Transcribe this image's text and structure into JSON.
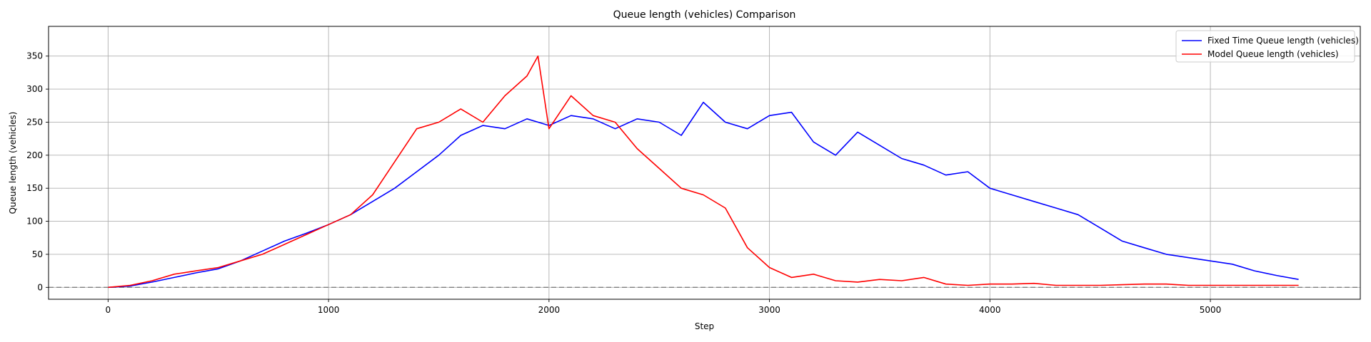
{
  "chart_data": {
    "type": "line",
    "title": "Queue length (vehicles) Comparison",
    "xlabel": "Step",
    "ylabel": "Queue length (vehicles)",
    "xlim": [
      -270,
      5680
    ],
    "ylim": [
      -18,
      395
    ],
    "xticks": [
      0,
      1000,
      2000,
      3000,
      4000,
      5000
    ],
    "yticks": [
      0,
      50,
      100,
      150,
      200,
      250,
      300,
      350
    ],
    "grid": true,
    "legend_position": "top-right",
    "reference_line": {
      "y": 0,
      "style": "dashed",
      "color": "#808080"
    },
    "series": [
      {
        "name": "Fixed Time Queue length (vehicles)",
        "color": "#0000ff",
        "x": [
          0,
          100,
          200,
          300,
          400,
          500,
          600,
          700,
          800,
          900,
          1000,
          1100,
          1200,
          1300,
          1400,
          1500,
          1600,
          1700,
          1800,
          1900,
          2000,
          2100,
          2200,
          2300,
          2400,
          2500,
          2600,
          2700,
          2800,
          2900,
          3000,
          3100,
          3200,
          3300,
          3400,
          3500,
          3600,
          3700,
          3800,
          3900,
          4000,
          4100,
          4200,
          4300,
          4400,
          4500,
          4600,
          4700,
          4800,
          4900,
          5000,
          5100,
          5200,
          5300,
          5400
        ],
        "y": [
          0,
          2,
          8,
          15,
          22,
          28,
          40,
          55,
          70,
          82,
          95,
          110,
          130,
          150,
          175,
          200,
          230,
          245,
          240,
          255,
          245,
          260,
          255,
          240,
          255,
          250,
          230,
          280,
          250,
          240,
          260,
          265,
          220,
          200,
          235,
          215,
          195,
          185,
          170,
          175,
          150,
          140,
          130,
          120,
          110,
          90,
          70,
          60,
          50,
          45,
          40,
          35,
          25,
          18,
          12
        ]
      },
      {
        "name": "Model Queue length (vehicles)",
        "color": "#ff0000",
        "x": [
          0,
          100,
          200,
          300,
          400,
          500,
          600,
          700,
          800,
          900,
          1000,
          1100,
          1200,
          1300,
          1400,
          1500,
          1600,
          1700,
          1800,
          1900,
          1950,
          2000,
          2100,
          2200,
          2300,
          2400,
          2500,
          2600,
          2700,
          2800,
          2900,
          3000,
          3100,
          3200,
          3300,
          3400,
          3500,
          3600,
          3700,
          3800,
          3900,
          4000,
          4100,
          4200,
          4300,
          4400,
          4500,
          4600,
          4700,
          4800,
          4900,
          5000,
          5100,
          5200,
          5300,
          5400
        ],
        "y": [
          0,
          3,
          10,
          20,
          25,
          30,
          40,
          50,
          65,
          80,
          95,
          110,
          140,
          190,
          240,
          250,
          270,
          250,
          290,
          320,
          350,
          240,
          290,
          260,
          250,
          210,
          180,
          150,
          140,
          120,
          60,
          30,
          15,
          20,
          10,
          8,
          12,
          10,
          15,
          5,
          3,
          5,
          5,
          6,
          3,
          3,
          3,
          4,
          5,
          5,
          3,
          3,
          3,
          3,
          3,
          3
        ]
      }
    ]
  }
}
